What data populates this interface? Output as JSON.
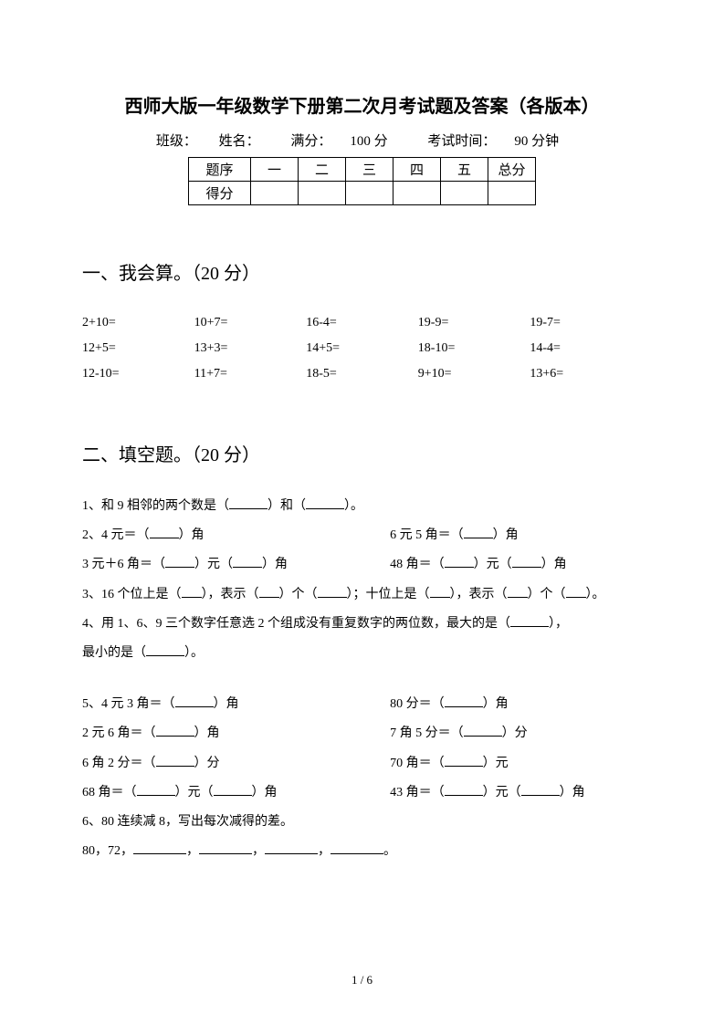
{
  "title": "西师大版一年级数学下册第二次月考试题及答案（各版本）",
  "info": {
    "class_label": "班级：",
    "name_label": "姓名：",
    "full_label": "满分：",
    "full_value": "100 分",
    "time_label": "考试时间：",
    "time_value": "90 分钟"
  },
  "table": {
    "row1_label": "题序",
    "cols": [
      "一",
      "二",
      "三",
      "四",
      "五",
      "总分"
    ],
    "row2_label": "得分"
  },
  "section1": {
    "heading": "一、我会算。（20 分）",
    "rows": [
      [
        "2+10=",
        "10+7=",
        "16-4=",
        "19-9=",
        "19-7="
      ],
      [
        "12+5=",
        "13+3=",
        "14+5=",
        "18-10=",
        "14-4="
      ],
      [
        "12-10=",
        "11+7=",
        "18-5=",
        "9+10=",
        "13+6="
      ]
    ]
  },
  "section2": {
    "heading": "二、填空题。（20 分）",
    "q1_a": "1、和 9 相邻的两个数是（",
    "q1_b": "）和（",
    "q1_c": "）。",
    "q2_l_a": "2、4 元＝（",
    "q2_l_b": "）角",
    "q2_r_a": "6 元 5 角＝（",
    "q2_r_b": "）角",
    "q2b_l_a": "3 元＋6 角＝（",
    "q2b_l_b": "）元（",
    "q2b_l_c": "）角",
    "q2b_r_a": "48 角＝（",
    "q2b_r_b": "）元（",
    "q2b_r_c": "）角",
    "q3_a": "3、16 个位上是（",
    "q3_b": "），表示（",
    "q3_c": "）个（",
    "q3_d": "）；十位上是（",
    "q3_e": "），表示（",
    "q3_f": "）个（",
    "q3_g": "）。",
    "q4_a": "4、用 1、6、9 三个数字任意选 2 个组成没有重复数字的两位数，最大的是（",
    "q4_b": "），",
    "q4_c": "最小的是（",
    "q4_d": "）。",
    "q5_l_a": "5、4 元 3 角＝（",
    "q5_l_b": "）角",
    "q5_r_a": "80 分＝（",
    "q5_r_b": "）角",
    "q5b_l_a": "2 元 6 角＝（",
    "q5b_l_b": "）角",
    "q5b_r_a": "7 角 5 分＝（",
    "q5b_r_b": "）分",
    "q5c_l_a": "6 角 2 分＝（",
    "q5c_l_b": "）分",
    "q5c_r_a": "70 角＝（",
    "q5c_r_b": "）元",
    "q5d_l_a": "68 角＝（",
    "q5d_l_b": "）元（",
    "q5d_l_c": "）角",
    "q5d_r_a": "43 角＝（",
    "q5d_r_b": "）元（",
    "q5d_r_c": "）角",
    "q6_a": "6、80 连续减 8，写出每次减得的差。",
    "q6_b": "80，72，",
    "q6_c": "，",
    "q6_d": "。"
  },
  "page_num": "1 / 6"
}
